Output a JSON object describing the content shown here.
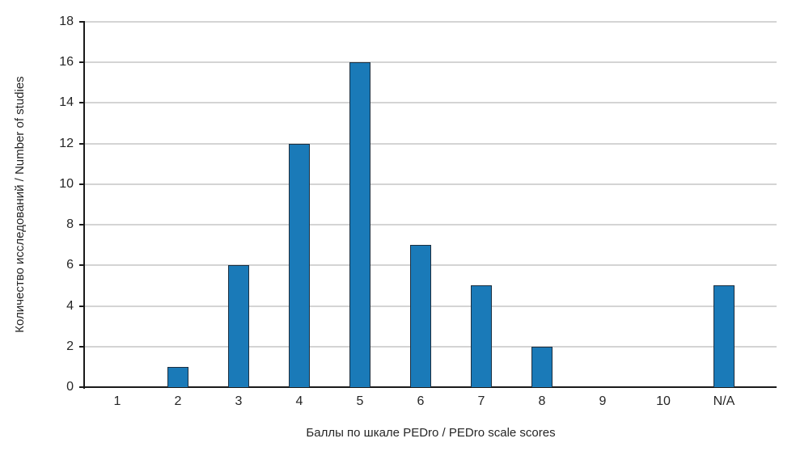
{
  "chart_data": {
    "type": "bar",
    "categories": [
      "1",
      "2",
      "3",
      "4",
      "5",
      "6",
      "7",
      "8",
      "9",
      "10",
      "N/A"
    ],
    "values": [
      0,
      1,
      6,
      12,
      16,
      7,
      5,
      2,
      0,
      0,
      5
    ],
    "xlabel": "Баллы по шкале PEDro / PEDro scale scores",
    "ylabel": "Количество исследований / Number of studies",
    "ylim": [
      0,
      18
    ],
    "yticks": [
      0,
      2,
      4,
      6,
      8,
      10,
      12,
      14,
      16,
      18
    ],
    "grid": "horizontal",
    "legend_position": "none",
    "colors": {
      "bar_fill": "#1a7ab8",
      "bar_edge": "#1c2f40",
      "axis": "#1a1a1a",
      "grid": "#d4d4d4",
      "text": "#262626",
      "background": "#ffffff"
    }
  }
}
